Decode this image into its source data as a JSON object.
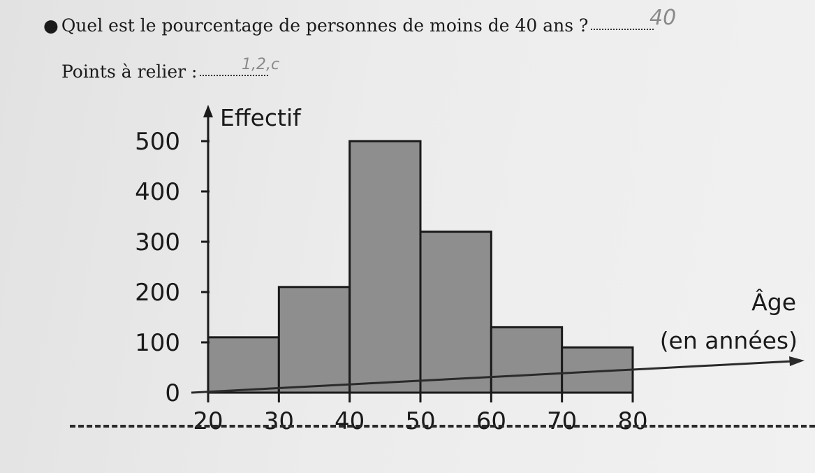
{
  "question": {
    "text": "Quel est le pourcentage de personnes de moins de 40 ans ?",
    "handwritten_answer": "40"
  },
  "points": {
    "text": "Points à relier :",
    "handwritten_answer": "1,2,c"
  },
  "chart_data": {
    "type": "bar",
    "title": "",
    "xlabel": "Âge",
    "xlabel_unit": "(en années)",
    "ylabel": "Effectif",
    "x_edges": [
      20,
      30,
      40,
      50,
      60,
      70,
      80
    ],
    "x_ticks": [
      "20",
      "30",
      "40",
      "50",
      "60",
      "70",
      "80"
    ],
    "y_ticks": [
      "0",
      "100",
      "200",
      "300",
      "400",
      "500"
    ],
    "ylim": [
      0,
      500
    ],
    "bins": [
      {
        "from": 20,
        "to": 30,
        "value": 110
      },
      {
        "from": 30,
        "to": 40,
        "value": 210
      },
      {
        "from": 40,
        "to": 50,
        "value": 500
      },
      {
        "from": 50,
        "to": 60,
        "value": 320
      },
      {
        "from": 60,
        "to": 70,
        "value": 130
      },
      {
        "from": 70,
        "to": 80,
        "value": 90
      }
    ],
    "grid": false,
    "bar_color": "#8e8e8e"
  }
}
